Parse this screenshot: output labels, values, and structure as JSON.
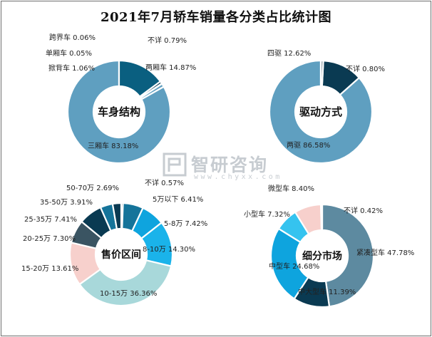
{
  "title": "2021年7月轿车销量各分类占比统计图",
  "watermark": {
    "name": "智研咨询",
    "url": "www.chyxx.com"
  },
  "colors": {
    "dark_navy": "#0a3a52",
    "mid_blue": "#1d6d8e",
    "light_steel": "#5f9fc0",
    "sky_blue": "#0ea4de",
    "bright_sky": "#1ab3ea",
    "pink": "#f7d0cc",
    "pale_teal": "#a8d8da",
    "slate": "#2f4c5a",
    "steel_gray_blue": "#5d8aa0"
  },
  "chart_data": [
    {
      "type": "pie",
      "style": "donut",
      "center_label": "车身结构",
      "categories": [
        "三厢车",
        "掀背车",
        "单厢车",
        "跨界车",
        "不详",
        "两厢车"
      ],
      "values": [
        83.18,
        1.06,
        0.05,
        0.06,
        0.79,
        14.87
      ],
      "labels": [
        "三厢车 83.18%",
        "掀背车 1.06%",
        "单厢车 0.05%",
        "跨界车 0.06%",
        "不详 0.79%",
        "两厢车 14.87%"
      ],
      "colors": [
        "#5f9fc0",
        "#5f9fc0",
        "#5f9fc0",
        "#1d6d8e",
        "#0a3a52",
        "#0a5f80"
      ]
    },
    {
      "type": "pie",
      "style": "donut",
      "center_label": "驱动方式",
      "categories": [
        "两驱",
        "四驱",
        "不详"
      ],
      "values": [
        86.58,
        12.62,
        0.8
      ],
      "labels": [
        "两驱 86.58%",
        "四驱 12.62%",
        "不详 0.80%"
      ],
      "colors": [
        "#5f9fc0",
        "#0a3a52",
        "#8a9aa2"
      ]
    },
    {
      "type": "pie",
      "style": "donut",
      "center_label": "售价区间",
      "categories": [
        "不详",
        "5万以下",
        "5-8万",
        "8-10万",
        "10-15万",
        "15-20万",
        "20-25万",
        "25-35万",
        "35-50万",
        "50-70万"
      ],
      "values": [
        0.57,
        6.41,
        7.42,
        14.3,
        36.36,
        13.61,
        7.3,
        7.41,
        3.91,
        2.69
      ],
      "labels": [
        "不详 0.57%",
        "5万以下 6.41%",
        "5-8万 7.42%",
        "8-10万 14.30%",
        "10-15万 36.36%",
        "15-20万 13.61%",
        "20-25万 7.30%",
        "25-35万 7.41%",
        "35-50万 3.91%",
        "50-70万 2.69%"
      ],
      "colors": [
        "#0a3a52",
        "#15749a",
        "#0ea4de",
        "#1ab3ea",
        "#a8d8da",
        "#f7d0cc",
        "#3a5462",
        "#0a3a52",
        "#15749a",
        "#0a3a52"
      ]
    },
    {
      "type": "pie",
      "style": "donut",
      "center_label": "细分市场",
      "categories": [
        "紧凑型车",
        "中大型车",
        "中型车",
        "小型车",
        "微型车",
        "不详"
      ],
      "values": [
        47.78,
        11.39,
        24.68,
        7.32,
        8.4,
        0.42
      ],
      "labels": [
        "紧凑型车 47.78%",
        "中大型车 11.39%",
        "中型车 24.68%",
        "小型车 7.32%",
        "微型车 8.40%",
        "不详 0.42%"
      ],
      "colors": [
        "#5d8aa0",
        "#0a3a52",
        "#0ea4de",
        "#35c3ef",
        "#f7d0cc",
        "#8a9aa2"
      ]
    }
  ]
}
